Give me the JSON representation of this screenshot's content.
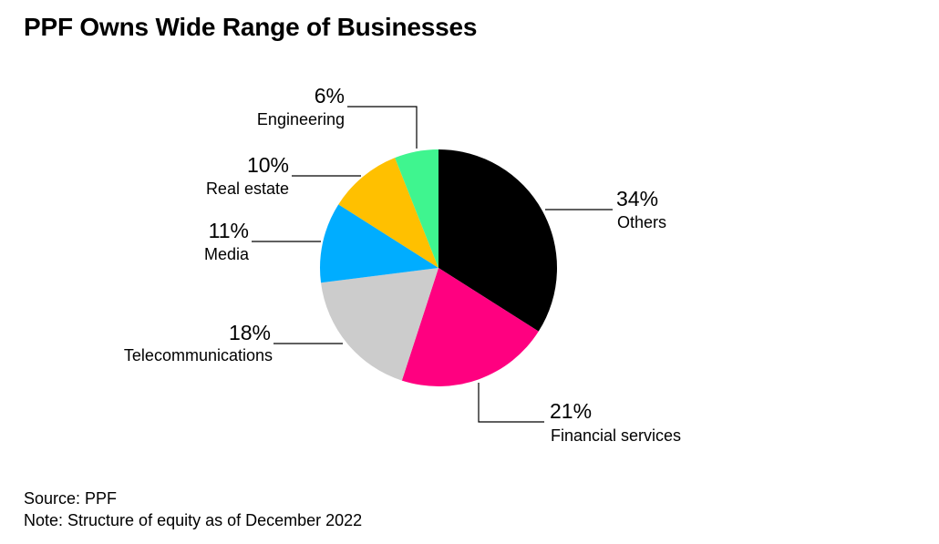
{
  "chart_data": {
    "type": "pie",
    "title": "PPF Owns Wide Range of Businesses",
    "start_angle": "12 o'clock",
    "direction": "clockwise",
    "slices": [
      {
        "label": "Others",
        "value": 34,
        "value_label": "34%",
        "color": "#000000"
      },
      {
        "label": "Financial services",
        "value": 21,
        "value_label": "21%",
        "color": "#ff0080"
      },
      {
        "label": "Telecommunications",
        "value": 18,
        "value_label": "18%",
        "color": "#cccccc"
      },
      {
        "label": "Media",
        "value": 11,
        "value_label": "11%",
        "color": "#00adff"
      },
      {
        "label": "Real estate",
        "value": 10,
        "value_label": "10%",
        "color": "#ffc000"
      },
      {
        "label": "Engineering",
        "value": 6,
        "value_label": "6%",
        "color": "#3ff58f"
      }
    ]
  },
  "footer": {
    "source": "Source: PPF",
    "note": "Note: Structure of equity as of December 2022"
  }
}
